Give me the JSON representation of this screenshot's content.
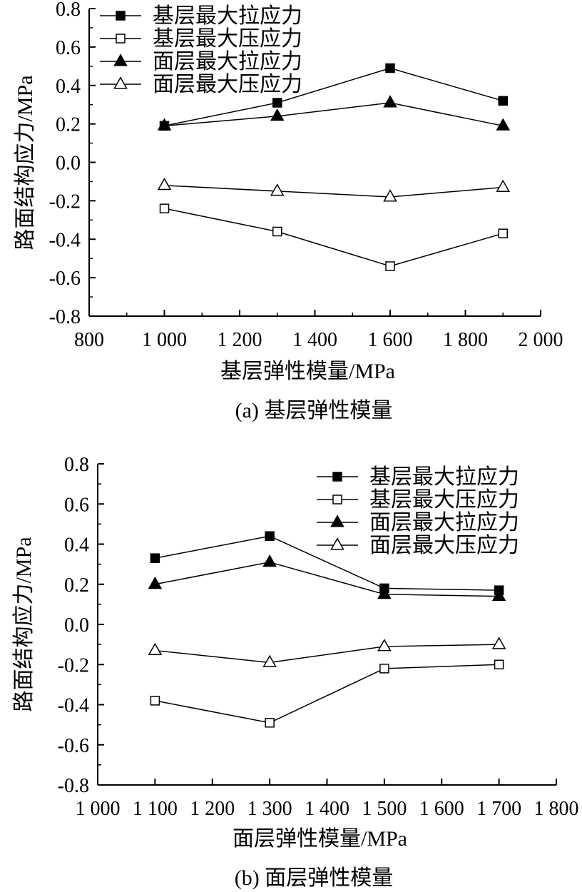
{
  "figures": [
    {
      "caption": "(a) 基层弹性模量",
      "chart_data": {
        "type": "line",
        "xlabel": "基层弹性模量/MPa",
        "ylabel": "路面结构应力/MPa",
        "xlim": [
          800,
          2000
        ],
        "ylim": [
          -0.8,
          0.8
        ],
        "xticks": [
          800,
          1000,
          1200,
          1400,
          1600,
          1800,
          2000
        ],
        "xtick_labels": [
          "800",
          "1 000",
          "1 200",
          "1 400",
          "1 600",
          "1 800",
          "2 000"
        ],
        "yticks": [
          0.8,
          0.6,
          0.4,
          0.2,
          0.0,
          -0.2,
          -0.4,
          -0.6,
          -0.8
        ],
        "ytick_labels": [
          "0.8",
          "0.6",
          "0.4",
          "0.2",
          "0.0",
          "-0.2",
          "-0.4",
          "-0.6",
          "-0.8"
        ],
        "legend_position": "top-left",
        "x": [
          1000,
          1300,
          1600,
          1900
        ],
        "series": [
          {
            "name": "基层最大拉应力",
            "marker": "square-filled",
            "values": [
              0.19,
              0.31,
              0.49,
              0.32
            ]
          },
          {
            "name": "基层最大压应力",
            "marker": "square-open",
            "values": [
              -0.24,
              -0.36,
              -0.54,
              -0.37
            ]
          },
          {
            "name": "面层最大拉应力",
            "marker": "triangle-filled",
            "values": [
              0.19,
              0.24,
              0.31,
              0.19
            ]
          },
          {
            "name": "面层最大压应力",
            "marker": "triangle-open",
            "values": [
              -0.12,
              -0.15,
              -0.18,
              -0.13
            ]
          }
        ]
      }
    },
    {
      "caption": "(b) 面层弹性模量",
      "chart_data": {
        "type": "line",
        "xlabel": "面层弹性模量/MPa",
        "ylabel": "路面结构应力/MPa",
        "xlim": [
          1000,
          1800
        ],
        "ylim": [
          -0.8,
          0.8
        ],
        "xticks": [
          1000,
          1100,
          1200,
          1300,
          1400,
          1500,
          1600,
          1700,
          1800
        ],
        "xtick_labels": [
          "1 000",
          "1 100",
          "1 200",
          "1 300",
          "1 400",
          "1 500",
          "1 600",
          "1 700",
          "1 800"
        ],
        "yticks": [
          0.8,
          0.6,
          0.4,
          0.2,
          0.0,
          -0.2,
          -0.4,
          -0.6,
          -0.8
        ],
        "ytick_labels": [
          "0.8",
          "0.6",
          "0.4",
          "0.2",
          "0.0",
          "-0.2",
          "-0.4",
          "-0.6",
          "-0.8"
        ],
        "legend_position": "top-right",
        "x": [
          1100,
          1300,
          1500,
          1700
        ],
        "series": [
          {
            "name": "基层最大拉应力",
            "marker": "square-filled",
            "values": [
              0.33,
              0.44,
              0.18,
              0.17
            ]
          },
          {
            "name": "基层最大压应力",
            "marker": "square-open",
            "values": [
              -0.38,
              -0.49,
              -0.22,
              -0.2
            ]
          },
          {
            "name": "面层最大拉应力",
            "marker": "triangle-filled",
            "values": [
              0.2,
              0.31,
              0.15,
              0.14
            ]
          },
          {
            "name": "面层最大压应力",
            "marker": "triangle-open",
            "values": [
              -0.13,
              -0.19,
              -0.11,
              -0.1
            ]
          }
        ]
      }
    }
  ]
}
